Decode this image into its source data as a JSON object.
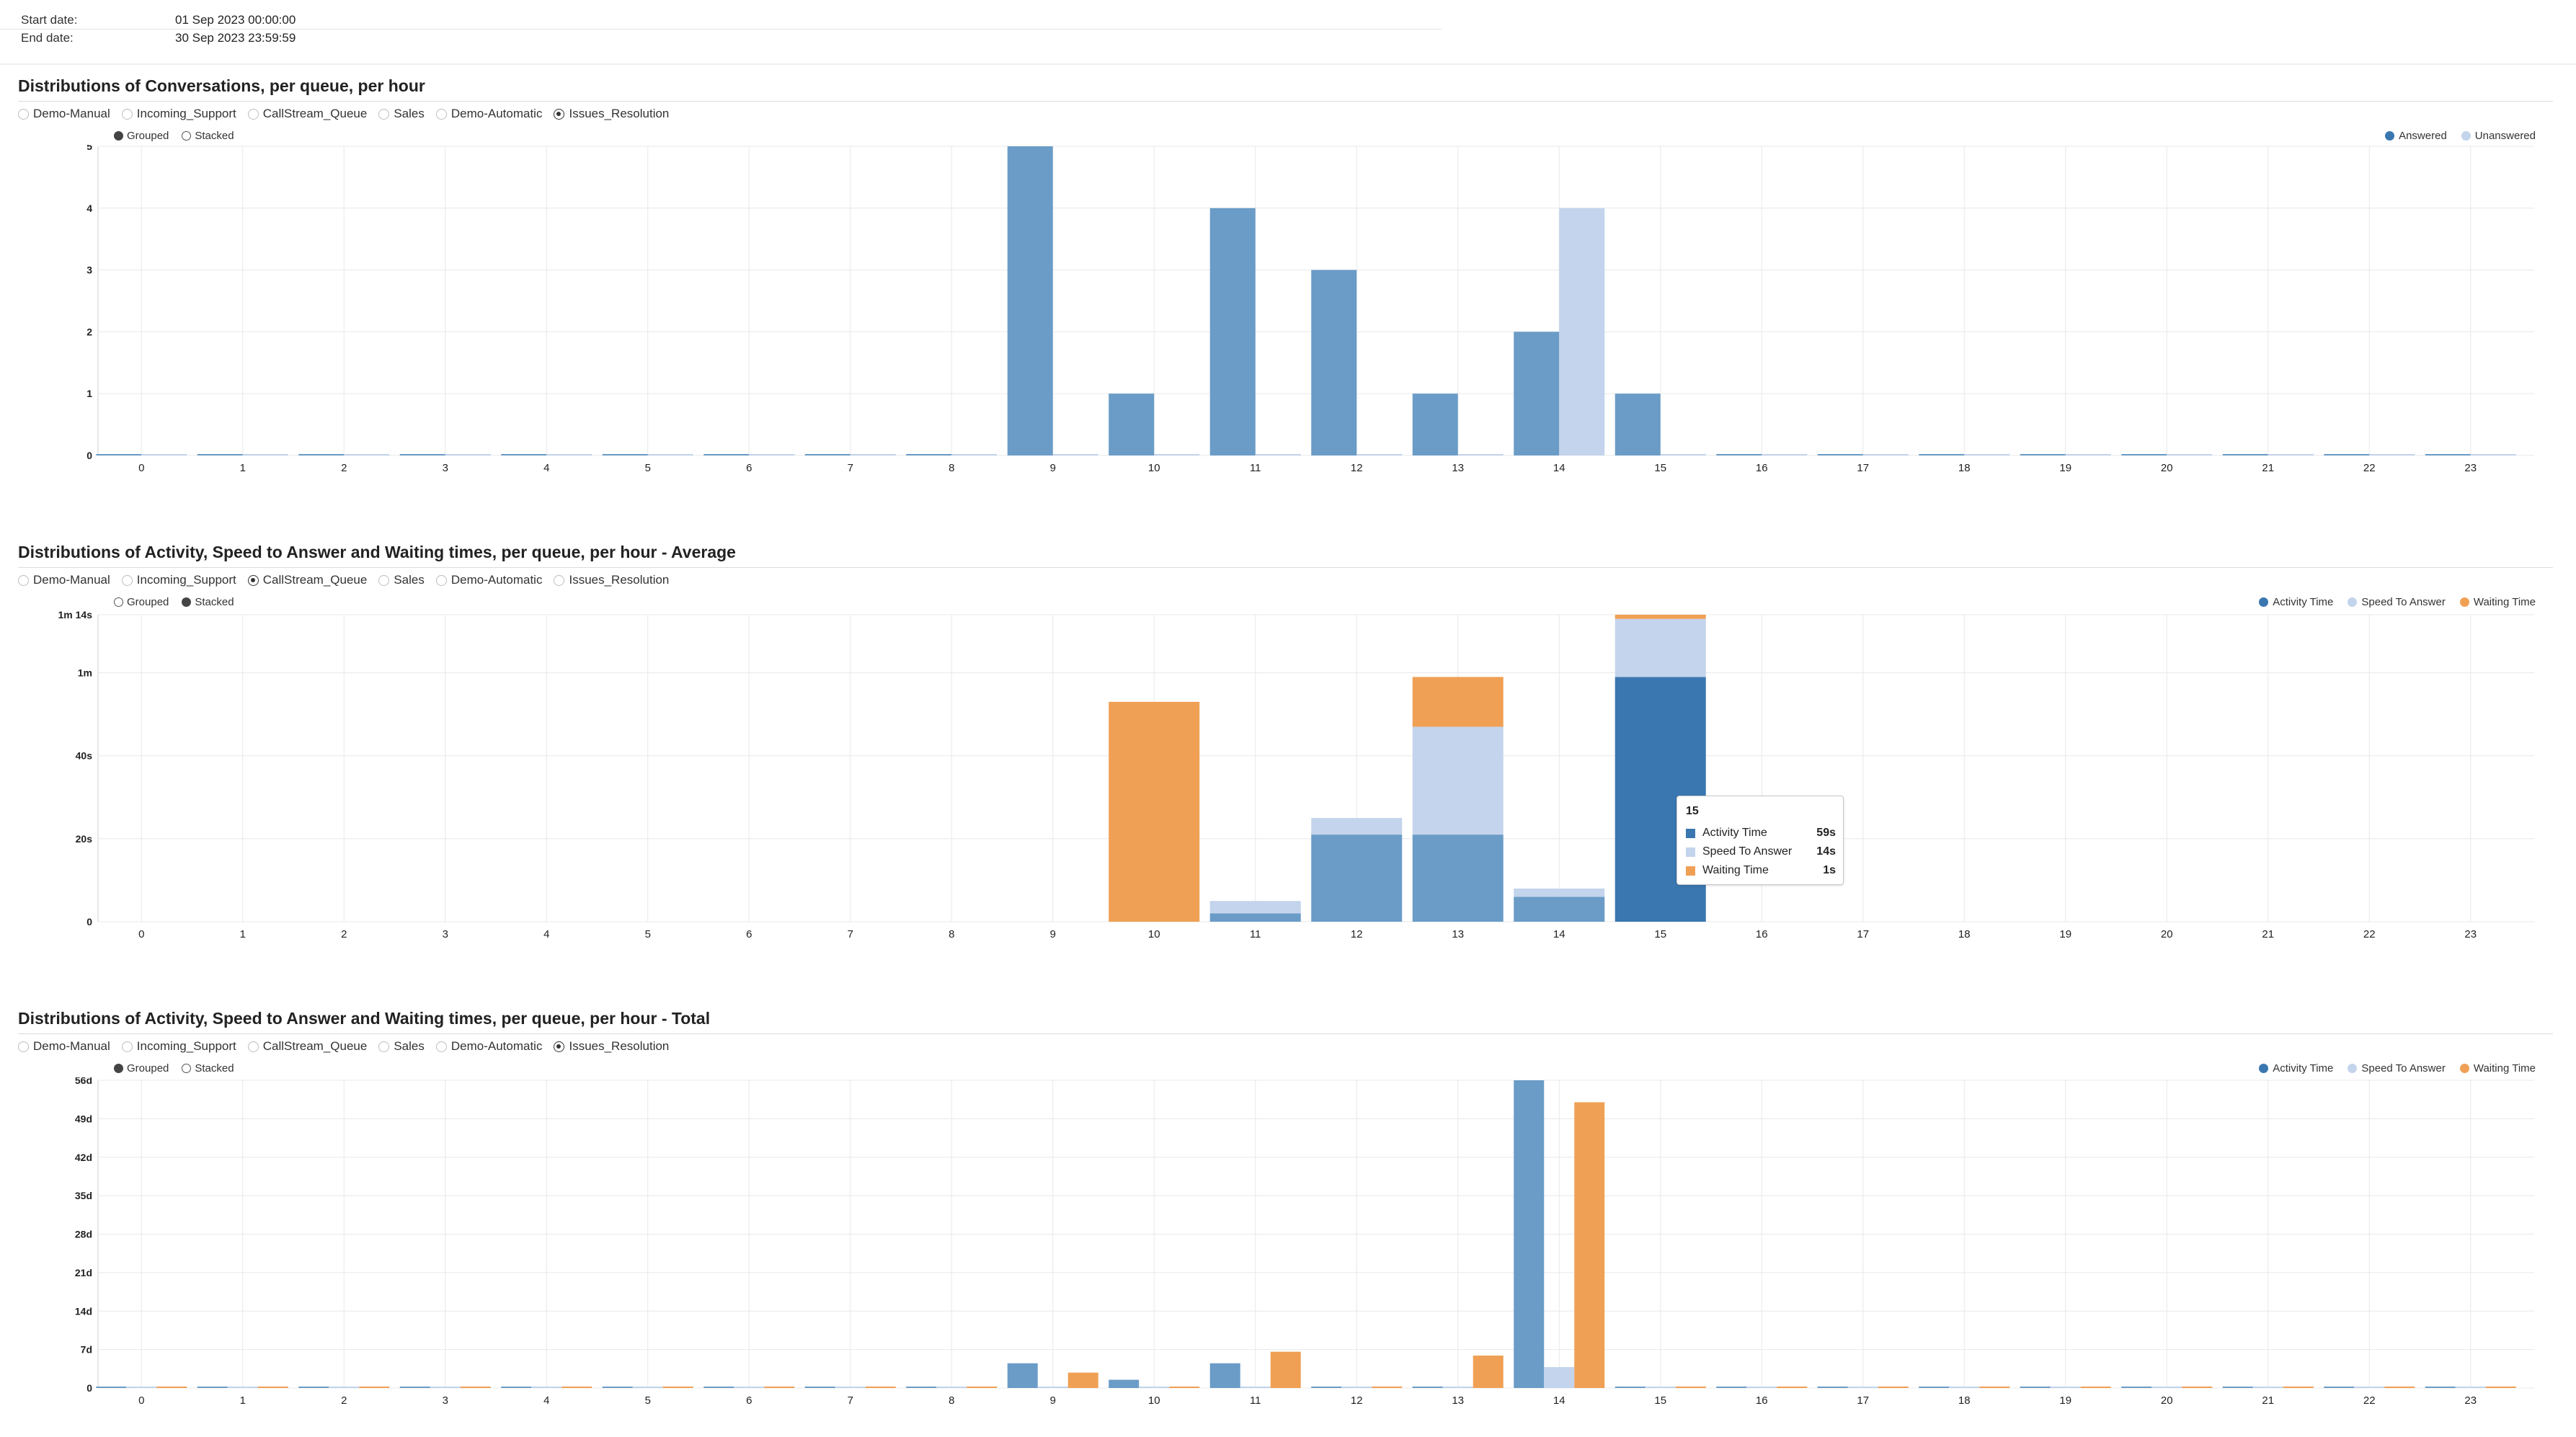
{
  "header": {
    "start_label": "Start date:",
    "start_value": "01 Sep 2023 00:00:00",
    "end_label": "End date:",
    "end_value": "30 Sep 2023 23:59:59"
  },
  "colors": {
    "activity": "#3a77b0",
    "activity_light": "#6a9cc7",
    "speed": "#c3d4ec",
    "waiting": "#f0a055",
    "grid": "#e8e8e8"
  },
  "sections": [
    {
      "title": "Distributions of Conversations, per queue, per hour",
      "queues": [
        {
          "label": "Demo-Manual",
          "selected": false
        },
        {
          "label": "Incoming_Support",
          "selected": false
        },
        {
          "label": "CallStream_Queue",
          "selected": false
        },
        {
          "label": "Sales",
          "selected": false
        },
        {
          "label": "Demo-Automatic",
          "selected": false
        },
        {
          "label": "Issues_Resolution",
          "selected": true
        }
      ],
      "modes": [
        {
          "label": "Grouped",
          "selected": true
        },
        {
          "label": "Stacked",
          "selected": false
        }
      ],
      "legend": [
        {
          "label": "Answered",
          "color": "#3a77b0"
        },
        {
          "label": "Unanswered",
          "color": "#c3d4ec"
        }
      ]
    },
    {
      "title": "Distributions of Activity, Speed to Answer and Waiting times, per queue, per hour - Average",
      "queues": [
        {
          "label": "Demo-Manual",
          "selected": false
        },
        {
          "label": "Incoming_Support",
          "selected": false
        },
        {
          "label": "CallStream_Queue",
          "selected": true
        },
        {
          "label": "Sales",
          "selected": false
        },
        {
          "label": "Demo-Automatic",
          "selected": false
        },
        {
          "label": "Issues_Resolution",
          "selected": false
        }
      ],
      "modes": [
        {
          "label": "Grouped",
          "selected": false
        },
        {
          "label": "Stacked",
          "selected": true
        }
      ],
      "legend": [
        {
          "label": "Activity Time",
          "color": "#3a77b0"
        },
        {
          "label": "Speed To Answer",
          "color": "#c3d4ec"
        },
        {
          "label": "Waiting Time",
          "color": "#f0a055"
        }
      ]
    },
    {
      "title": "Distributions of Activity, Speed to Answer and Waiting times, per queue, per hour - Total",
      "queues": [
        {
          "label": "Demo-Manual",
          "selected": false
        },
        {
          "label": "Incoming_Support",
          "selected": false
        },
        {
          "label": "CallStream_Queue",
          "selected": false
        },
        {
          "label": "Sales",
          "selected": false
        },
        {
          "label": "Demo-Automatic",
          "selected": false
        },
        {
          "label": "Issues_Resolution",
          "selected": true
        }
      ],
      "modes": [
        {
          "label": "Grouped",
          "selected": true
        },
        {
          "label": "Stacked",
          "selected": false
        }
      ],
      "legend": [
        {
          "label": "Activity Time",
          "color": "#3a77b0"
        },
        {
          "label": "Speed To Answer",
          "color": "#c3d4ec"
        },
        {
          "label": "Waiting Time",
          "color": "#f0a055"
        }
      ]
    }
  ],
  "tooltip": {
    "title": "15",
    "rows": [
      {
        "label": "Activity Time",
        "value": "59s",
        "color": "#3a77b0"
      },
      {
        "label": "Speed To Answer",
        "value": "14s",
        "color": "#c3d4ec"
      },
      {
        "label": "Waiting Time",
        "value": "1s",
        "color": "#f0a055"
      }
    ]
  },
  "chart_data": [
    {
      "type": "bar",
      "mode": "grouped",
      "categories": [
        "0",
        "1",
        "2",
        "3",
        "4",
        "5",
        "6",
        "7",
        "8",
        "9",
        "10",
        "11",
        "12",
        "13",
        "14",
        "15",
        "16",
        "17",
        "18",
        "19",
        "20",
        "21",
        "22",
        "23"
      ],
      "series": [
        {
          "name": "Answered",
          "values": [
            0,
            0,
            0,
            0,
            0,
            0,
            0,
            0,
            0,
            5,
            1,
            4,
            3,
            1,
            2,
            1,
            0,
            0,
            0,
            0,
            0,
            0,
            0,
            0
          ]
        },
        {
          "name": "Unanswered",
          "values": [
            0,
            0,
            0,
            0,
            0,
            0,
            0,
            0,
            0,
            0,
            0,
            0,
            0,
            0,
            4,
            0,
            0,
            0,
            0,
            0,
            0,
            0,
            0,
            0
          ]
        }
      ],
      "ylim": [
        0,
        5
      ],
      "yticks": [
        0,
        1,
        2,
        3,
        4,
        5
      ],
      "ytick_labels": [
        "0",
        "1",
        "2",
        "3",
        "4",
        "5"
      ],
      "grid": true,
      "legend_position": "top-right"
    },
    {
      "type": "bar",
      "mode": "stacked",
      "units": "seconds",
      "categories": [
        "0",
        "1",
        "2",
        "3",
        "4",
        "5",
        "6",
        "7",
        "8",
        "9",
        "10",
        "11",
        "12",
        "13",
        "14",
        "15",
        "16",
        "17",
        "18",
        "19",
        "20",
        "21",
        "22",
        "23"
      ],
      "series": [
        {
          "name": "Activity Time",
          "values": [
            0,
            0,
            0,
            0,
            0,
            0,
            0,
            0,
            0,
            0,
            0,
            2,
            21,
            21,
            6,
            59,
            0,
            0,
            0,
            0,
            0,
            0,
            0,
            0
          ]
        },
        {
          "name": "Speed To Answer",
          "values": [
            0,
            0,
            0,
            0,
            0,
            0,
            0,
            0,
            0,
            0,
            0,
            3,
            4,
            26,
            2,
            14,
            0,
            0,
            0,
            0,
            0,
            0,
            0,
            0
          ]
        },
        {
          "name": "Waiting Time",
          "values": [
            0,
            0,
            0,
            0,
            0,
            0,
            0,
            0,
            0,
            0,
            53,
            0,
            0,
            12,
            0,
            1,
            0,
            0,
            0,
            0,
            0,
            0,
            0,
            0
          ]
        }
      ],
      "ylim": [
        0,
        74
      ],
      "yticks": [
        0,
        20,
        40,
        60,
        74
      ],
      "ytick_labels": [
        "0",
        "20s",
        "40s",
        "1m",
        "1m 14s"
      ],
      "grid": true,
      "legend_position": "top-right"
    },
    {
      "type": "bar",
      "mode": "grouped",
      "units": "days",
      "categories": [
        "0",
        "1",
        "2",
        "3",
        "4",
        "5",
        "6",
        "7",
        "8",
        "9",
        "10",
        "11",
        "12",
        "13",
        "14",
        "15",
        "16",
        "17",
        "18",
        "19",
        "20",
        "21",
        "22",
        "23"
      ],
      "series": [
        {
          "name": "Activity Time",
          "values": [
            0,
            0,
            0,
            0,
            0,
            0,
            0,
            0,
            0,
            4.5,
            1.5,
            4.5,
            0,
            0,
            56,
            0,
            0,
            0,
            0,
            0,
            0,
            0,
            0,
            0
          ]
        },
        {
          "name": "Speed To Answer",
          "values": [
            0,
            0,
            0,
            0,
            0,
            0,
            0,
            0,
            0,
            0,
            0,
            0,
            0,
            0,
            3.8,
            0,
            0,
            0,
            0,
            0,
            0,
            0,
            0,
            0
          ]
        },
        {
          "name": "Waiting Time",
          "values": [
            0,
            0,
            0,
            0,
            0,
            0,
            0,
            0,
            0,
            2.8,
            0,
            6.6,
            0,
            5.9,
            52,
            0,
            0,
            0,
            0,
            0,
            0,
            0,
            0,
            0
          ]
        }
      ],
      "ylim": [
        0,
        56
      ],
      "yticks": [
        0,
        7,
        14,
        21,
        28,
        35,
        42,
        49,
        56
      ],
      "ytick_labels": [
        "0",
        "7d",
        "14d",
        "21d",
        "28d",
        "35d",
        "42d",
        "49d",
        "56d"
      ],
      "grid": true,
      "legend_position": "top-right"
    }
  ]
}
